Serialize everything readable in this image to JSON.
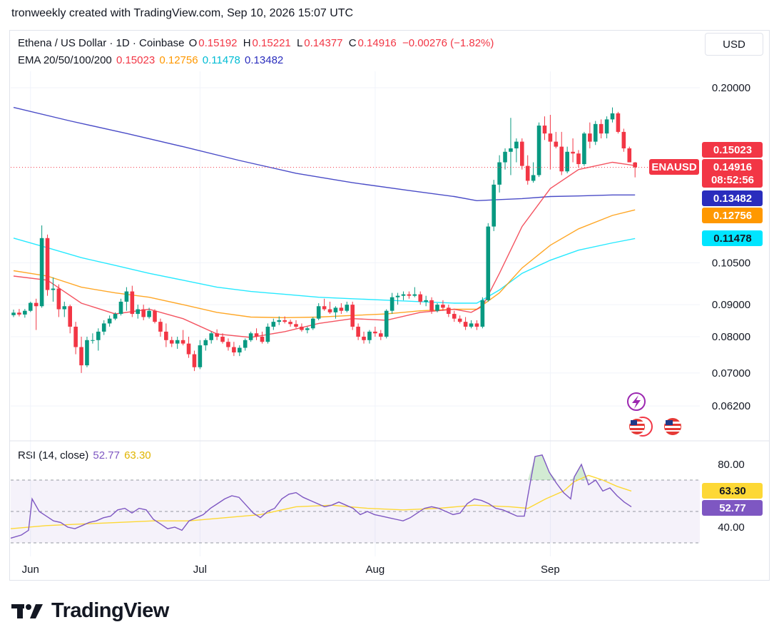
{
  "header": {
    "credit": "tronweekly created with TradingView.com, Sep 10, 2026 15:07 UTC"
  },
  "legend": {
    "symbol": "Ethena / US Dollar · 1D · Coinbase",
    "ohlc": [
      {
        "label": "O",
        "value": "0.15192"
      },
      {
        "label": "H",
        "value": "0.15221"
      },
      {
        "label": "L",
        "value": "0.14377"
      },
      {
        "label": "C",
        "value": "0.14916"
      }
    ],
    "change": "−0.00276 (−1.82%)",
    "ema_label": "EMA 20/50/100/200",
    "ema_values": [
      "0.15023",
      "0.12756",
      "0.11478",
      "0.13482"
    ],
    "rsi_label": "RSI (14, close)",
    "rsi_values": [
      "52.77",
      "63.30"
    ]
  },
  "toolbar": {
    "currency": "USD"
  },
  "brand": {
    "name": "TradingView"
  },
  "colors": {
    "up": "#089981",
    "down": "#f23645",
    "ema20": "#f23645",
    "ema50": "#ff9800",
    "ema100": "#00e5ff",
    "ema200": "#2a2dbd",
    "rsi": "#7e57c2",
    "rsi_ma": "#fdd835"
  },
  "chart_data": {
    "type": "candlestick",
    "title": "Ethena / US Dollar · 1D · Coinbase",
    "y_scale": "log",
    "price_ticks": [
      0.2,
      0.105,
      0.09,
      0.08,
      0.07,
      0.062
    ],
    "price_tick_labels": [
      "0.20000",
      "0.10500",
      "0.09000",
      "0.08000",
      "0.07000",
      "0.06200"
    ],
    "x_tick_labels": [
      {
        "label": "Jun",
        "date": "2026-06-01"
      },
      {
        "label": "Jul",
        "date": "2026-07-01"
      },
      {
        "label": "Aug",
        "date": "2026-08-01"
      },
      {
        "label": "Sep",
        "date": "2026-09-01"
      }
    ],
    "start_date": "2026-05-29",
    "candles": [
      [
        0.0866,
        0.0884,
        0.086,
        0.0874
      ],
      [
        0.0874,
        0.0886,
        0.0862,
        0.0868
      ],
      [
        0.0868,
        0.0886,
        0.0858,
        0.088
      ],
      [
        0.088,
        0.091,
        0.0876,
        0.0906
      ],
      [
        0.0906,
        0.092,
        0.082,
        0.0895
      ],
      [
        0.0895,
        0.1205,
        0.089,
        0.115
      ],
      [
        0.115,
        0.1165,
        0.093,
        0.095
      ],
      [
        0.095,
        0.0995,
        0.091,
        0.0955
      ],
      [
        0.0955,
        0.097,
        0.086,
        0.0885
      ],
      [
        0.0885,
        0.091,
        0.086,
        0.0895
      ],
      [
        0.0895,
        0.09,
        0.081,
        0.083
      ],
      [
        0.083,
        0.0845,
        0.075,
        0.077
      ],
      [
        0.077,
        0.08,
        0.07,
        0.072
      ],
      [
        0.072,
        0.08,
        0.0715,
        0.079
      ],
      [
        0.079,
        0.081,
        0.078,
        0.079
      ],
      [
        0.079,
        0.0825,
        0.076,
        0.0815
      ],
      [
        0.0815,
        0.085,
        0.0805,
        0.084
      ],
      [
        0.084,
        0.0865,
        0.083,
        0.0855
      ],
      [
        0.0855,
        0.0875,
        0.085,
        0.087
      ],
      [
        0.087,
        0.092,
        0.0865,
        0.091
      ],
      [
        0.091,
        0.096,
        0.088,
        0.0945
      ],
      [
        0.0945,
        0.0965,
        0.086,
        0.087
      ],
      [
        0.087,
        0.09,
        0.0855,
        0.0885
      ],
      [
        0.0885,
        0.09,
        0.085,
        0.086
      ],
      [
        0.086,
        0.089,
        0.0855,
        0.088
      ],
      [
        0.088,
        0.0885,
        0.084,
        0.0845
      ],
      [
        0.0845,
        0.0855,
        0.08,
        0.0815
      ],
      [
        0.0815,
        0.084,
        0.077,
        0.079
      ],
      [
        0.079,
        0.08,
        0.077,
        0.078
      ],
      [
        0.078,
        0.08,
        0.0765,
        0.079
      ],
      [
        0.079,
        0.082,
        0.0775,
        0.078
      ],
      [
        0.078,
        0.08,
        0.074,
        0.075
      ],
      [
        0.075,
        0.076,
        0.0705,
        0.0715
      ],
      [
        0.0715,
        0.079,
        0.071,
        0.0775
      ],
      [
        0.0775,
        0.0795,
        0.076,
        0.079
      ],
      [
        0.079,
        0.0815,
        0.078,
        0.081
      ],
      [
        0.081,
        0.0822,
        0.079,
        0.08
      ],
      [
        0.08,
        0.081,
        0.078,
        0.0785
      ],
      [
        0.0785,
        0.0795,
        0.076,
        0.077
      ],
      [
        0.077,
        0.0785,
        0.0745,
        0.0755
      ],
      [
        0.0755,
        0.0775,
        0.0745,
        0.0768
      ],
      [
        0.0768,
        0.0795,
        0.076,
        0.079
      ],
      [
        0.079,
        0.0815,
        0.0785,
        0.081
      ],
      [
        0.081,
        0.0825,
        0.079,
        0.08
      ],
      [
        0.08,
        0.0815,
        0.078,
        0.0785
      ],
      [
        0.0785,
        0.084,
        0.078,
        0.083
      ],
      [
        0.083,
        0.0855,
        0.082,
        0.0845
      ],
      [
        0.0845,
        0.0862,
        0.0835,
        0.085
      ],
      [
        0.085,
        0.0862,
        0.084,
        0.0845
      ],
      [
        0.0845,
        0.0852,
        0.083,
        0.0838
      ],
      [
        0.0838,
        0.085,
        0.0825,
        0.083
      ],
      [
        0.083,
        0.084,
        0.0815,
        0.082
      ],
      [
        0.082,
        0.083,
        0.081,
        0.0825
      ],
      [
        0.0825,
        0.086,
        0.082,
        0.0855
      ],
      [
        0.0855,
        0.0905,
        0.085,
        0.0895
      ],
      [
        0.0895,
        0.092,
        0.088,
        0.0885
      ],
      [
        0.0885,
        0.091,
        0.087,
        0.0875
      ],
      [
        0.0875,
        0.0895,
        0.0855,
        0.089
      ],
      [
        0.089,
        0.0905,
        0.087,
        0.088
      ],
      [
        0.088,
        0.091,
        0.0875,
        0.09
      ],
      [
        0.09,
        0.091,
        0.082,
        0.083
      ],
      [
        0.083,
        0.084,
        0.079,
        0.08
      ],
      [
        0.08,
        0.0815,
        0.078,
        0.079
      ],
      [
        0.079,
        0.082,
        0.078,
        0.0815
      ],
      [
        0.0815,
        0.083,
        0.08,
        0.081
      ],
      [
        0.081,
        0.082,
        0.079,
        0.08
      ],
      [
        0.08,
        0.0885,
        0.0795,
        0.088
      ],
      [
        0.088,
        0.094,
        0.087,
        0.0925
      ],
      [
        0.0925,
        0.094,
        0.09,
        0.093
      ],
      [
        0.093,
        0.0945,
        0.0915,
        0.0935
      ],
      [
        0.0935,
        0.0945,
        0.092,
        0.093
      ],
      [
        0.093,
        0.096,
        0.0925,
        0.0935
      ],
      [
        0.0935,
        0.0945,
        0.09,
        0.091
      ],
      [
        0.091,
        0.093,
        0.0895,
        0.0915
      ],
      [
        0.0915,
        0.0925,
        0.087,
        0.088
      ],
      [
        0.088,
        0.0905,
        0.0875,
        0.09
      ],
      [
        0.09,
        0.0915,
        0.088,
        0.089
      ],
      [
        0.089,
        0.09,
        0.086,
        0.087
      ],
      [
        0.087,
        0.088,
        0.0845,
        0.0855
      ],
      [
        0.0855,
        0.0865,
        0.084,
        0.0845
      ],
      [
        0.0845,
        0.086,
        0.082,
        0.083
      ],
      [
        0.083,
        0.085,
        0.0825,
        0.084
      ],
      [
        0.084,
        0.085,
        0.082,
        0.083
      ],
      [
        0.083,
        0.0925,
        0.0825,
        0.0915
      ],
      [
        0.0915,
        0.1215,
        0.091,
        0.12
      ],
      [
        0.12,
        0.1425,
        0.118,
        0.14
      ],
      [
        0.14,
        0.156,
        0.136,
        0.152
      ],
      [
        0.152,
        0.16,
        0.148,
        0.158
      ],
      [
        0.158,
        0.179,
        0.145,
        0.16
      ],
      [
        0.16,
        0.166,
        0.152,
        0.164
      ],
      [
        0.164,
        0.166,
        0.148,
        0.15
      ],
      [
        0.15,
        0.156,
        0.14,
        0.142
      ],
      [
        0.142,
        0.152,
        0.141,
        0.145
      ],
      [
        0.145,
        0.176,
        0.144,
        0.174
      ],
      [
        0.174,
        0.18,
        0.165,
        0.169
      ],
      [
        0.169,
        0.181,
        0.148,
        0.164
      ],
      [
        0.164,
        0.17,
        0.16,
        0.161
      ],
      [
        0.161,
        0.17,
        0.145,
        0.147
      ],
      [
        0.147,
        0.161,
        0.146,
        0.158
      ],
      [
        0.158,
        0.166,
        0.152,
        0.157
      ],
      [
        0.157,
        0.159,
        0.149,
        0.151
      ],
      [
        0.151,
        0.17,
        0.15,
        0.169
      ],
      [
        0.169,
        0.176,
        0.16,
        0.164
      ],
      [
        0.164,
        0.177,
        0.162,
        0.175
      ],
      [
        0.175,
        0.178,
        0.166,
        0.169
      ],
      [
        0.169,
        0.18,
        0.166,
        0.178
      ],
      [
        0.178,
        0.186,
        0.176,
        0.182
      ],
      [
        0.182,
        0.183,
        0.169,
        0.17
      ],
      [
        0.17,
        0.172,
        0.158,
        0.16
      ],
      [
        0.16,
        0.161,
        0.152,
        0.152
      ],
      [
        0.1519,
        0.1522,
        0.1438,
        0.1492
      ]
    ],
    "ema20": [
      [
        0,
        0.1
      ],
      [
        6,
        0.0985
      ],
      [
        12,
        0.0905
      ],
      [
        18,
        0.087
      ],
      [
        24,
        0.0885
      ],
      [
        30,
        0.0855
      ],
      [
        36,
        0.0808
      ],
      [
        42,
        0.0798
      ],
      [
        48,
        0.0815
      ],
      [
        54,
        0.084
      ],
      [
        60,
        0.0855
      ],
      [
        66,
        0.085
      ],
      [
        72,
        0.0875
      ],
      [
        78,
        0.0885
      ],
      [
        81,
        0.0875
      ],
      [
        83,
        0.0895
      ],
      [
        86,
        0.101
      ],
      [
        90,
        0.12
      ],
      [
        95,
        0.138
      ],
      [
        100,
        0.148
      ],
      [
        106,
        0.152
      ],
      [
        110,
        0.1502
      ]
    ],
    "ema50": [
      [
        0,
        0.102
      ],
      [
        6,
        0.1
      ],
      [
        12,
        0.096
      ],
      [
        18,
        0.094
      ],
      [
        24,
        0.0925
      ],
      [
        30,
        0.09
      ],
      [
        36,
        0.0875
      ],
      [
        42,
        0.086
      ],
      [
        48,
        0.0858
      ],
      [
        54,
        0.086
      ],
      [
        60,
        0.0865
      ],
      [
        66,
        0.087
      ],
      [
        72,
        0.088
      ],
      [
        78,
        0.0885
      ],
      [
        82,
        0.0885
      ],
      [
        86,
        0.094
      ],
      [
        90,
        0.103
      ],
      [
        95,
        0.112
      ],
      [
        100,
        0.119
      ],
      [
        106,
        0.125
      ],
      [
        110,
        0.1276
      ]
    ],
    "ema100": [
      [
        0,
        0.115
      ],
      [
        6,
        0.111
      ],
      [
        12,
        0.107
      ],
      [
        18,
        0.104
      ],
      [
        24,
        0.101
      ],
      [
        30,
        0.0985
      ],
      [
        36,
        0.096
      ],
      [
        42,
        0.0945
      ],
      [
        48,
        0.0935
      ],
      [
        54,
        0.0925
      ],
      [
        60,
        0.092
      ],
      [
        66,
        0.0915
      ],
      [
        72,
        0.091
      ],
      [
        78,
        0.0905
      ],
      [
        82,
        0.0905
      ],
      [
        86,
        0.095
      ],
      [
        90,
        0.101
      ],
      [
        95,
        0.106
      ],
      [
        100,
        0.11
      ],
      [
        106,
        0.113
      ],
      [
        110,
        0.1148
      ]
    ],
    "ema200": [
      [
        0,
        0.186
      ],
      [
        10,
        0.177
      ],
      [
        20,
        0.169
      ],
      [
        30,
        0.161
      ],
      [
        40,
        0.153
      ],
      [
        50,
        0.146
      ],
      [
        60,
        0.141
      ],
      [
        70,
        0.137
      ],
      [
        78,
        0.134
      ],
      [
        82,
        0.132
      ],
      [
        86,
        0.1325
      ],
      [
        90,
        0.133
      ],
      [
        95,
        0.134
      ],
      [
        100,
        0.1343
      ],
      [
        106,
        0.1348
      ],
      [
        110,
        0.1348
      ]
    ],
    "price_tags": [
      {
        "label": "ENAUSD",
        "value": "0.14916",
        "extra": "08:52:56"
      },
      {
        "value": "0.15023"
      },
      {
        "value": "0.13482"
      },
      {
        "value": "0.12756"
      },
      {
        "value": "0.11478"
      }
    ],
    "rsi": {
      "ticks": [
        80,
        40
      ],
      "tick_labels": [
        "80.00",
        "40.00"
      ],
      "overbought": 70,
      "oversold": 30,
      "middle": 50,
      "values": [
        [
          0,
          33
        ],
        [
          3,
          35
        ],
        [
          5,
          38
        ],
        [
          6,
          58
        ],
        [
          8,
          50
        ],
        [
          10,
          47
        ],
        [
          12,
          44
        ],
        [
          14,
          43
        ],
        [
          16,
          40
        ],
        [
          18,
          39
        ],
        [
          20,
          41
        ],
        [
          22,
          43
        ],
        [
          24,
          44
        ],
        [
          26,
          46
        ],
        [
          28,
          47
        ],
        [
          30,
          51
        ],
        [
          32,
          52
        ],
        [
          34,
          49
        ],
        [
          36,
          52
        ],
        [
          38,
          51
        ],
        [
          40,
          45
        ],
        [
          42,
          42
        ],
        [
          44,
          39
        ],
        [
          46,
          40
        ],
        [
          48,
          38
        ],
        [
          50,
          44
        ],
        [
          52,
          46
        ],
        [
          54,
          48
        ],
        [
          56,
          52
        ],
        [
          58,
          55
        ],
        [
          60,
          58
        ],
        [
          62,
          60
        ],
        [
          64,
          59
        ],
        [
          66,
          54
        ],
        [
          68,
          49
        ],
        [
          70,
          46
        ],
        [
          72,
          50
        ],
        [
          74,
          52
        ],
        [
          76,
          58
        ],
        [
          78,
          61
        ],
        [
          80,
          62
        ],
        [
          82,
          59
        ],
        [
          84,
          57
        ],
        [
          86,
          55
        ],
        [
          88,
          53
        ],
        [
          90,
          54
        ],
        [
          92,
          56
        ],
        [
          94,
          54
        ],
        [
          96,
          52
        ],
        [
          98,
          48
        ],
        [
          100,
          50
        ],
        [
          102,
          48
        ],
        [
          104,
          47
        ],
        [
          106,
          46
        ],
        [
          108,
          45
        ],
        [
          110,
          44
        ],
        [
          112,
          46
        ],
        [
          114,
          49
        ],
        [
          116,
          52
        ],
        [
          118,
          53
        ],
        [
          120,
          52
        ],
        [
          122,
          50
        ],
        [
          124,
          48
        ],
        [
          126,
          49
        ],
        [
          128,
          55
        ],
        [
          130,
          58
        ],
        [
          132,
          57
        ],
        [
          134,
          55
        ],
        [
          136,
          52
        ],
        [
          138,
          51
        ],
        [
          140,
          49
        ],
        [
          142,
          47
        ],
        [
          144,
          47
        ],
        [
          145,
          60
        ],
        [
          147,
          85
        ],
        [
          149,
          86
        ],
        [
          151,
          75
        ],
        [
          153,
          68
        ],
        [
          155,
          62
        ],
        [
          157,
          58
        ],
        [
          158,
          72
        ],
        [
          160,
          80
        ],
        [
          162,
          67
        ],
        [
          164,
          70
        ],
        [
          166,
          63
        ],
        [
          168,
          65
        ],
        [
          170,
          60
        ],
        [
          172,
          56
        ],
        [
          174,
          53
        ]
      ],
      "ma_values": [
        [
          0,
          39
        ],
        [
          10,
          41
        ],
        [
          20,
          42
        ],
        [
          30,
          43
        ],
        [
          40,
          44
        ],
        [
          50,
          44
        ],
        [
          60,
          46
        ],
        [
          70,
          48
        ],
        [
          80,
          53
        ],
        [
          90,
          54
        ],
        [
          100,
          52
        ],
        [
          110,
          51
        ],
        [
          120,
          52
        ],
        [
          130,
          54
        ],
        [
          140,
          53
        ],
        [
          145,
          52
        ],
        [
          150,
          58
        ],
        [
          155,
          63
        ],
        [
          158,
          69
        ],
        [
          162,
          73
        ],
        [
          166,
          70
        ],
        [
          170,
          66
        ],
        [
          174,
          63
        ]
      ]
    }
  }
}
